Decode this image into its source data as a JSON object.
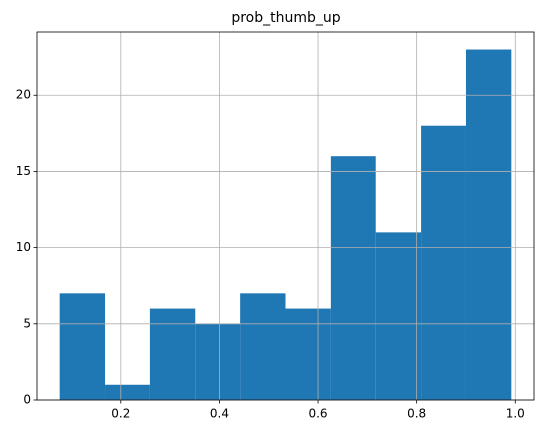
{
  "chart_data": {
    "type": "histogram",
    "title": "prob_thumb_up",
    "bins": [
      0.076,
      0.168,
      0.259,
      0.351,
      0.442,
      0.534,
      0.626,
      0.717,
      0.809,
      0.9,
      0.992
    ],
    "values": [
      7,
      1,
      6,
      5,
      7,
      6,
      16,
      11,
      18,
      23
    ],
    "color": "#1f77b4",
    "xlim": [
      0.03,
      1.038
    ],
    "xticks": [
      0.2,
      0.4,
      0.6,
      0.8,
      {
        "value": 1,
        "label": "1.0"
      }
    ],
    "ylim": [
      0,
      24.15
    ],
    "yticks": [
      0,
      5,
      10,
      15,
      20
    ],
    "grid": true
  }
}
